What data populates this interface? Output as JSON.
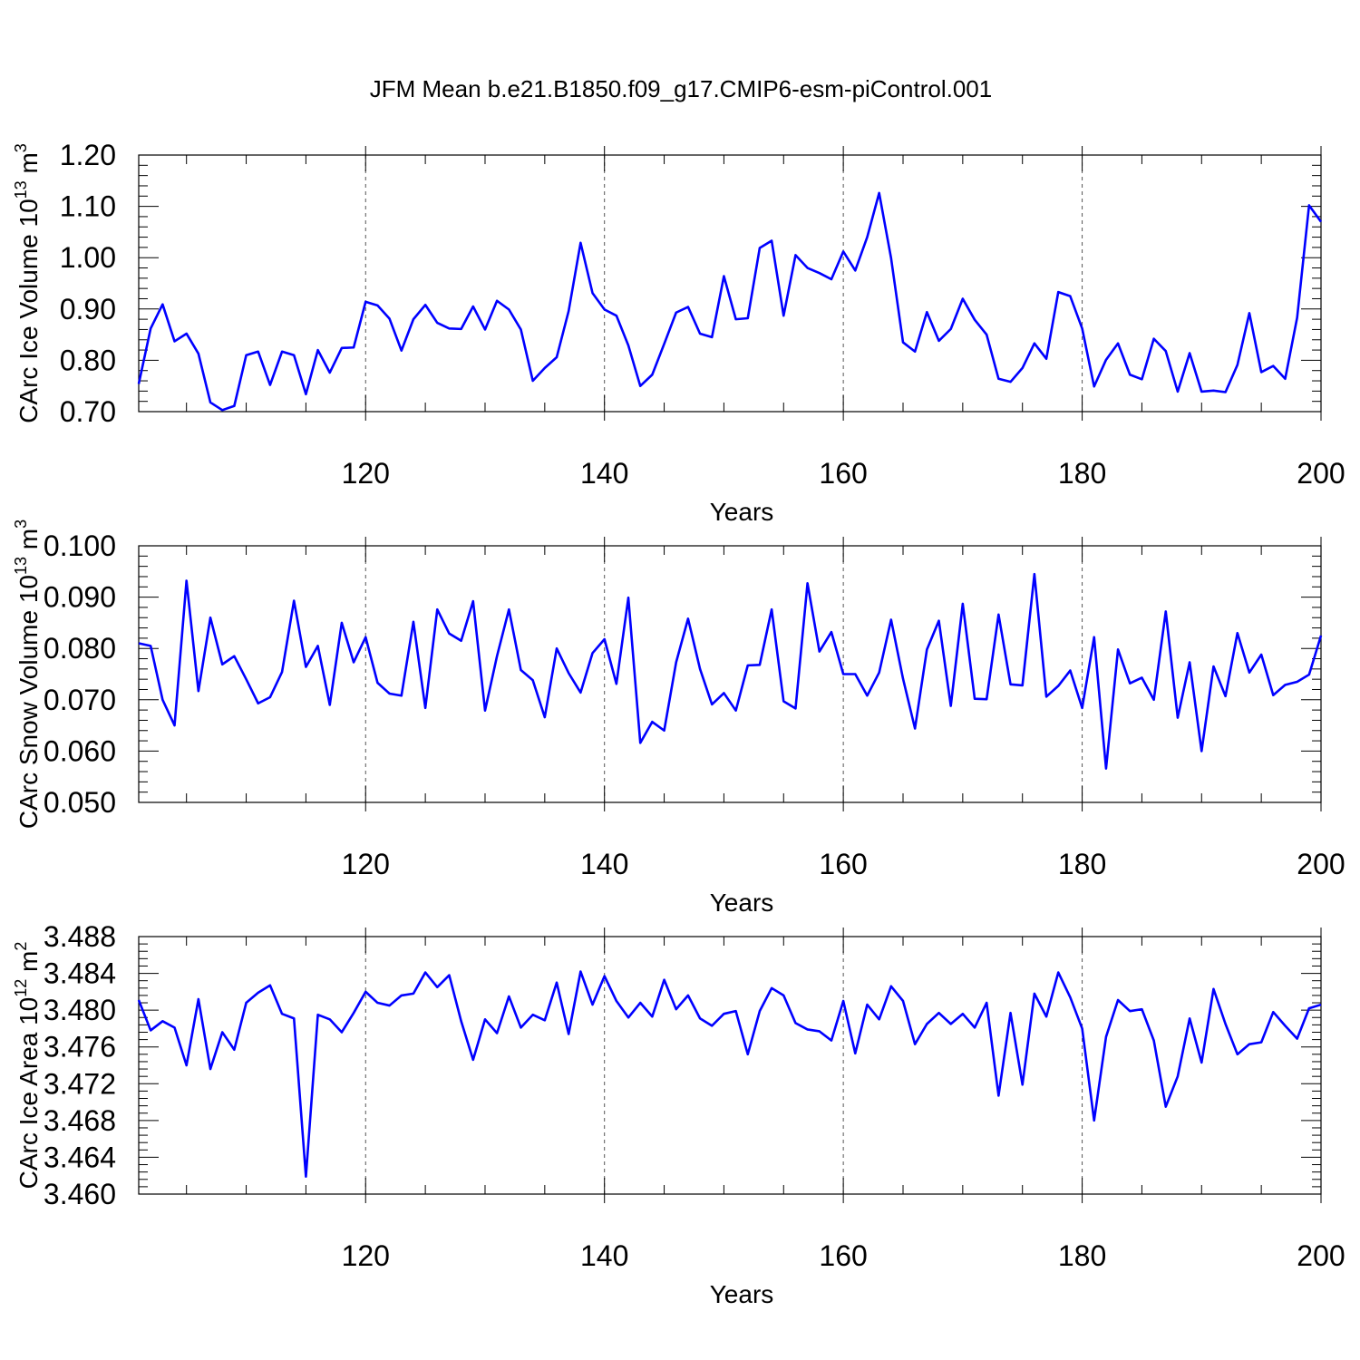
{
  "title": "JFM Mean b.e21.B1850.f09_g17.CMIP6-esm-piControl.001",
  "colors": {
    "line": "#0000ff",
    "axis": "#000000",
    "grid": "#555555"
  },
  "chart_data": [
    {
      "type": "line",
      "ylabel": "CArc Ice Volume 10",
      "ylabel_exp": "13",
      "ylabel_unit": " m",
      "ylabel_unit_exp": "3",
      "xlabel": "Years",
      "xlim": [
        101,
        200
      ],
      "ylim": [
        0.7,
        1.2
      ],
      "xticks": [
        120,
        140,
        160,
        180,
        200
      ],
      "xtick_labels": [
        "120",
        "140",
        "160",
        "180",
        "200"
      ],
      "yticks": [
        0.7,
        0.8,
        0.9,
        1.0,
        1.1,
        1.2
      ],
      "ytick_labels": [
        "0.70",
        "0.80",
        "0.90",
        "1.00",
        "1.10",
        "1.20"
      ],
      "grid": "vertical dashed at x ticks",
      "x_start": 101,
      "series": [
        {
          "values": [
            0.754,
            0.862,
            0.909,
            0.837,
            0.852,
            0.813,
            0.718,
            0.703,
            0.711,
            0.81,
            0.817,
            0.752,
            0.817,
            0.81,
            0.734,
            0.82,
            0.776,
            0.824,
            0.825,
            0.914,
            0.907,
            0.881,
            0.819,
            0.88,
            0.908,
            0.873,
            0.862,
            0.861,
            0.905,
            0.86,
            0.916,
            0.899,
            0.86,
            0.76,
            0.785,
            0.806,
            0.896,
            1.029,
            0.931,
            0.899,
            0.887,
            0.829,
            0.75,
            0.772,
            0.832,
            0.893,
            0.904,
            0.852,
            0.845,
            0.964,
            0.88,
            0.882,
            1.019,
            1.033,
            0.887,
            1.005,
            0.98,
            0.97,
            0.958,
            1.012,
            0.975,
            1.04,
            1.126,
            0.999,
            0.835,
            0.817,
            0.894,
            0.838,
            0.861,
            0.92,
            0.879,
            0.85,
            0.764,
            0.758,
            0.785,
            0.833,
            0.803,
            0.933,
            0.925,
            0.862,
            0.749,
            0.801,
            0.833,
            0.772,
            0.763,
            0.842,
            0.818,
            0.739,
            0.814,
            0.739,
            0.741,
            0.738,
            0.791,
            0.892,
            0.777,
            0.789,
            0.764,
            0.883,
            1.102,
            1.07
          ]
        }
      ]
    },
    {
      "type": "line",
      "ylabel": "CArc Snow Volume 10",
      "ylabel_exp": "13",
      "ylabel_unit": " m",
      "ylabel_unit_exp": "3",
      "xlabel": "Years",
      "xlim": [
        101,
        200
      ],
      "ylim": [
        0.05,
        0.1
      ],
      "xticks": [
        120,
        140,
        160,
        180,
        200
      ],
      "xtick_labels": [
        "120",
        "140",
        "160",
        "180",
        "200"
      ],
      "yticks": [
        0.05,
        0.06,
        0.07,
        0.08,
        0.09,
        0.1
      ],
      "ytick_labels": [
        "0.050",
        "0.060",
        "0.070",
        "0.080",
        "0.090",
        "0.100"
      ],
      "grid": "vertical dashed at x ticks",
      "x_start": 101,
      "series": [
        {
          "values": [
            0.081,
            0.0805,
            0.07,
            0.065,
            0.0932,
            0.0717,
            0.086,
            0.0769,
            0.0785,
            0.074,
            0.0693,
            0.0705,
            0.0754,
            0.0893,
            0.0764,
            0.0805,
            0.069,
            0.085,
            0.0773,
            0.0822,
            0.0733,
            0.0712,
            0.0708,
            0.0852,
            0.0684,
            0.0876,
            0.0829,
            0.0815,
            0.0892,
            0.0679,
            0.0785,
            0.0876,
            0.0758,
            0.0738,
            0.0666,
            0.08,
            0.0752,
            0.0714,
            0.0791,
            0.0818,
            0.0731,
            0.0899,
            0.0616,
            0.0657,
            0.064,
            0.0773,
            0.0858,
            0.076,
            0.0691,
            0.0713,
            0.0679,
            0.0767,
            0.0768,
            0.0876,
            0.0697,
            0.0683,
            0.0927,
            0.0794,
            0.0832,
            0.075,
            0.075,
            0.0708,
            0.0753,
            0.0856,
            0.0741,
            0.0644,
            0.0798,
            0.0854,
            0.0688,
            0.0887,
            0.0702,
            0.0701,
            0.0866,
            0.073,
            0.0728,
            0.0945,
            0.0706,
            0.0727,
            0.0757,
            0.0684,
            0.0822,
            0.0566,
            0.0798,
            0.0732,
            0.0743,
            0.07,
            0.0872,
            0.0665,
            0.0773,
            0.06,
            0.0765,
            0.0707,
            0.083,
            0.0753,
            0.0788,
            0.0709,
            0.0729,
            0.0735,
            0.0749,
            0.0825
          ]
        }
      ]
    },
    {
      "type": "line",
      "ylabel": "CArc Ice Area 10",
      "ylabel_exp": "12",
      "ylabel_unit": " m",
      "ylabel_unit_exp": "2",
      "xlabel": "Years",
      "xlim": [
        101,
        200
      ],
      "ylim": [
        3.46,
        3.488
      ],
      "xticks": [
        120,
        140,
        160,
        180,
        200
      ],
      "xtick_labels": [
        "120",
        "140",
        "160",
        "180",
        "200"
      ],
      "yticks": [
        3.46,
        3.464,
        3.468,
        3.472,
        3.476,
        3.48,
        3.484,
        3.488
      ],
      "ytick_labels": [
        "3.460",
        "3.464",
        "3.468",
        "3.472",
        "3.476",
        "3.480",
        "3.484",
        "3.488"
      ],
      "grid": "vertical dashed at x ticks",
      "x_start": 101,
      "series": [
        {
          "values": [
            3.4811,
            3.4778,
            3.4788,
            3.4781,
            3.474,
            3.4812,
            3.4736,
            3.4776,
            3.4757,
            3.4808,
            3.4819,
            3.4827,
            3.4796,
            3.4791,
            3.4619,
            3.4795,
            3.479,
            3.4776,
            3.4797,
            3.482,
            3.4808,
            3.4805,
            3.4816,
            3.4818,
            3.4841,
            3.4825,
            3.4838,
            3.4788,
            3.4746,
            3.479,
            3.4775,
            3.4815,
            3.4781,
            3.4795,
            3.4789,
            3.483,
            3.4774,
            3.4842,
            3.4806,
            3.4837,
            3.481,
            3.4792,
            3.4808,
            3.4793,
            3.4833,
            3.4801,
            3.4816,
            3.4791,
            3.4783,
            3.4796,
            3.4799,
            3.4752,
            3.4799,
            3.4824,
            3.4816,
            3.4786,
            3.4779,
            3.4777,
            3.4767,
            3.481,
            3.4753,
            3.4806,
            3.479,
            3.4826,
            3.481,
            3.4763,
            3.4785,
            3.4797,
            3.4785,
            3.4796,
            3.4781,
            3.4808,
            3.4707,
            3.4797,
            3.4719,
            3.4818,
            3.4793,
            3.4841,
            3.4814,
            3.478,
            3.468,
            3.4771,
            3.4811,
            3.4799,
            3.4801,
            3.4767,
            3.4695,
            3.4728,
            3.4791,
            3.4743,
            3.4823,
            3.4785,
            3.4752,
            3.4763,
            3.4765,
            3.4798,
            3.4783,
            3.4769,
            3.4802,
            3.4806
          ]
        }
      ]
    }
  ]
}
